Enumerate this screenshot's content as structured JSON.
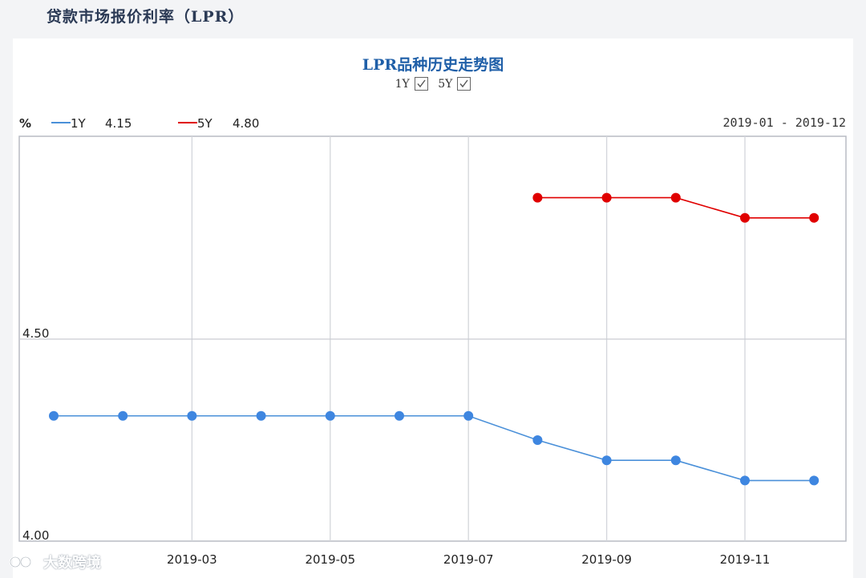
{
  "page": {
    "title": "贷款市场报价利率（LPR）"
  },
  "header": {
    "chart_title": "LPR品种历史走势图",
    "toggles": [
      {
        "label": "1Y",
        "checked": true
      },
      {
        "label": "5Y",
        "checked": true
      }
    ],
    "unit": "%",
    "date_range": "2019-01 - 2019-12"
  },
  "legend": [
    {
      "name": "1Y",
      "value": "4.15",
      "color": "#4a90d9"
    },
    {
      "name": "5Y",
      "value": "4.80",
      "color": "#e00000"
    }
  ],
  "watermark": {
    "text": "大数跨境",
    "icon": "logo-icon"
  },
  "chart_data": {
    "type": "line",
    "title": "LPR品种历史走势图",
    "xlabel": "",
    "ylabel": "%",
    "x": [
      "2019-01",
      "2019-02",
      "2019-03",
      "2019-04",
      "2019-05",
      "2019-06",
      "2019-07",
      "2019-08",
      "2019-09",
      "2019-10",
      "2019-11",
      "2019-12"
    ],
    "x_tick_labels": [
      "2019-03",
      "2019-05",
      "2019-07",
      "2019-09",
      "2019-11"
    ],
    "y_tick_labels": [
      "4.00",
      "4.50"
    ],
    "ylim": [
      4.0,
      5.0
    ],
    "grid": true,
    "series": [
      {
        "name": "1Y",
        "color": "#4a90d9",
        "values": [
          4.31,
          4.31,
          4.31,
          4.31,
          4.31,
          4.31,
          4.31,
          4.25,
          4.2,
          4.2,
          4.15,
          4.15
        ]
      },
      {
        "name": "5Y",
        "color": "#e00000",
        "values": [
          null,
          null,
          null,
          null,
          null,
          null,
          null,
          4.85,
          4.85,
          4.85,
          4.8,
          4.8
        ]
      }
    ]
  }
}
